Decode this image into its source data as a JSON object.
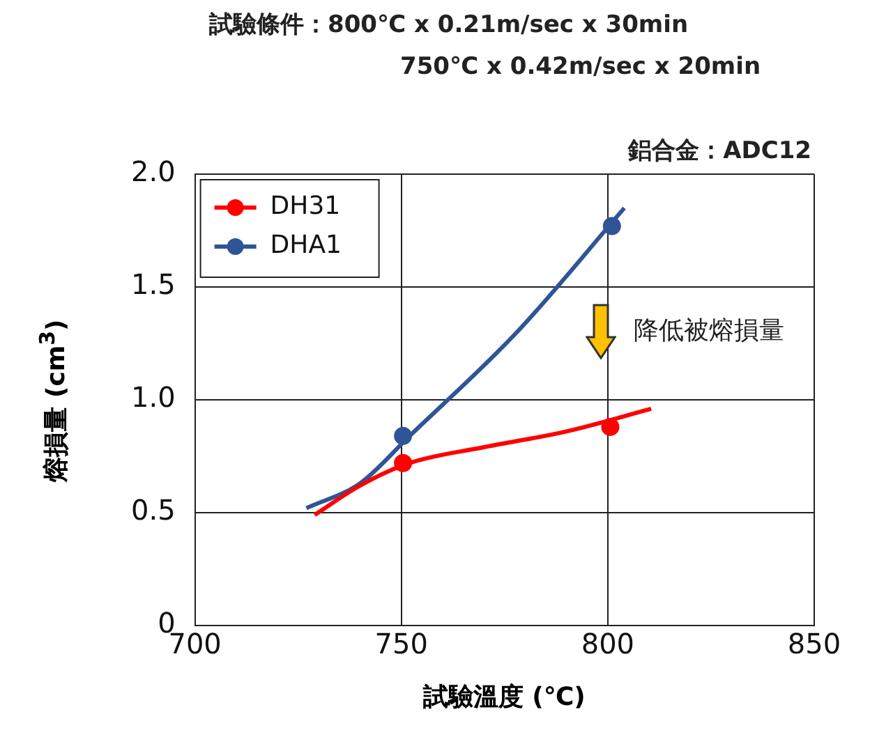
{
  "chart_data": {
    "type": "scatter",
    "title": "試驗條件：800℃ x 0.21m/sec x 30min",
    "subtitle": "750℃ x 0.42m/sec x 20min",
    "xlabel": "試驗溫度 (℃)",
    "ylabel": "熔損量 (cm$^{3}$)",
    "annotations": [
      "鋁合金：ADC12",
      "降低被熔損量"
    ],
    "xlim": [
      700,
      850
    ],
    "xticks": [
      700,
      750,
      800,
      850
    ],
    "ylim": [
      0,
      2.0
    ],
    "yticks": [
      {
        "value": 0,
        "label": "0"
      },
      {
        "value": 0.5,
        "label": "0.5"
      },
      {
        "value": 1.0,
        "label": "1.0"
      },
      {
        "value": 1.5,
        "label": "1.5"
      },
      {
        "value": 2.0,
        "label": "2.0"
      }
    ],
    "grid": true,
    "legend": "top left",
    "marker": "circle",
    "series": [
      {
        "name": "DH31",
        "type": "scatter",
        "color": "#ff0000",
        "x": [
          750.4,
          800.6
        ],
        "values": [
          0.72,
          0.88
        ]
      },
      {
        "name": "DHA1",
        "type": "scatter",
        "color": "#2f5597",
        "x": [
          750.4,
          801
        ],
        "values": [
          0.84,
          1.77
        ]
      },
      {
        "type": "line",
        "marker": "none",
        "color": "#ff0000",
        "x": [
          729,
          740,
          752,
          770,
          790,
          810.5
        ],
        "values": [
          0.49,
          0.62,
          0.72,
          0.79,
          0.86,
          0.96
        ]
      },
      {
        "type": "line",
        "marker": "none",
        "color": "#2f5597",
        "x": [
          727,
          740,
          752,
          778,
          804
        ],
        "values": [
          0.52,
          0.63,
          0.84,
          1.3,
          1.85
        ]
      }
    ]
  }
}
